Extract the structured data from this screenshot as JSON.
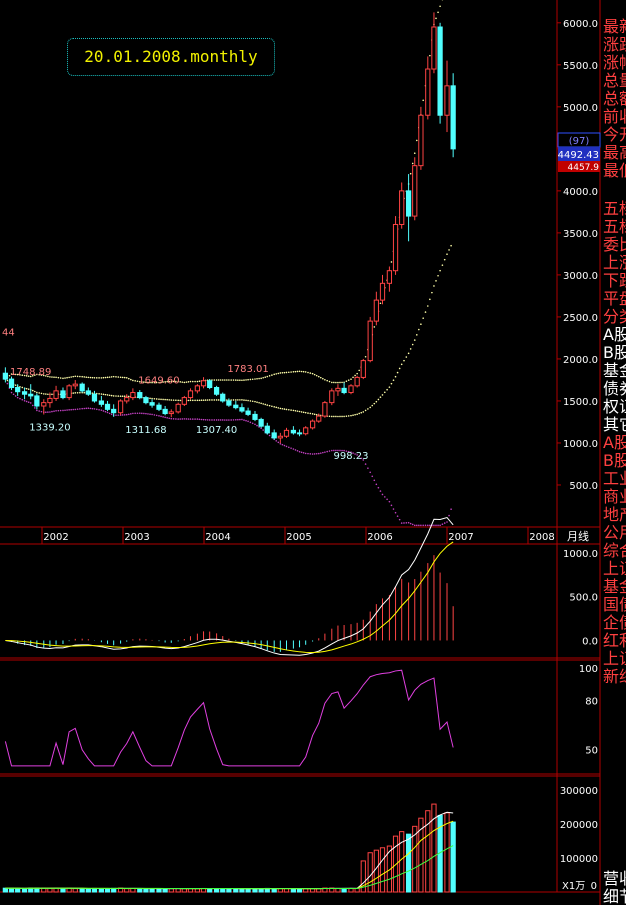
{
  "chart_data": [
    {
      "type": "candlestick",
      "title": "20.01.2008.monthly",
      "period_label": "月线",
      "ylim": [
        0,
        6200
      ],
      "y_ticks": [
        500,
        1000,
        1500,
        2000,
        2500,
        3000,
        3500,
        4000,
        4500,
        5000,
        5500,
        6000
      ],
      "y_tick_labels": [
        "500.0",
        "1000.0",
        "1500.0",
        "2000.0",
        "2500.0",
        "3000.0",
        "3500.0",
        "4000.0",
        "4500.0",
        "5000.0",
        "5500.0",
        "6000.0"
      ],
      "x_year_labels": [
        {
          "label": "2002",
          "x": 2002
        },
        {
          "label": "2003",
          "x": 2003
        },
        {
          "label": "2004",
          "x": 2004
        },
        {
          "label": "2005",
          "x": 2005
        },
        {
          "label": "2006",
          "x": 2006
        },
        {
          "label": "2007",
          "x": 2007
        },
        {
          "label": "2008",
          "x": 2008
        }
      ],
      "annotations": [
        {
          "text": "1748.89",
          "x": 2001.25,
          "y": 1748.89,
          "pos": "above"
        },
        {
          "text": "1339.20",
          "x": 2001.5,
          "y": 1339.2,
          "pos": "below"
        },
        {
          "text": "1649.60",
          "x": 2002.92,
          "y": 1649.6,
          "pos": "above"
        },
        {
          "text": "1311.68",
          "x": 2002.75,
          "y": 1311.68,
          "pos": "below"
        },
        {
          "text": "1783.01",
          "x": 2004.08,
          "y": 1783.01,
          "pos": "above"
        },
        {
          "text": "1307.40",
          "x": 2003.67,
          "y": 1307.4,
          "pos": "below"
        },
        {
          "text": "998.23",
          "x": 2005.42,
          "y": 998.23,
          "pos": "below"
        },
        {
          "text": "44",
          "x": 2000.9,
          "y": 2325,
          "pos": "left"
        }
      ],
      "current_markers": {
        "count_label": "(97)",
        "price_a": "4492.43",
        "price_b": "4457.9"
      },
      "candles": [
        {
          "t": 2000.92,
          "o": 1830,
          "h": 1900,
          "l": 1720,
          "c": 1760
        },
        {
          "t": 2001.0,
          "o": 1760,
          "h": 1790,
          "l": 1630,
          "c": 1660
        },
        {
          "t": 2001.08,
          "o": 1660,
          "h": 1700,
          "l": 1560,
          "c": 1610
        },
        {
          "t": 2001.17,
          "o": 1610,
          "h": 1660,
          "l": 1520,
          "c": 1580
        },
        {
          "t": 2001.25,
          "o": 1580,
          "h": 1700,
          "l": 1520,
          "c": 1560
        },
        {
          "t": 2001.33,
          "o": 1560,
          "h": 1590,
          "l": 1400,
          "c": 1440
        },
        {
          "t": 2001.42,
          "o": 1440,
          "h": 1520,
          "l": 1339,
          "c": 1480
        },
        {
          "t": 2001.5,
          "o": 1480,
          "h": 1600,
          "l": 1420,
          "c": 1530
        },
        {
          "t": 2001.58,
          "o": 1530,
          "h": 1680,
          "l": 1500,
          "c": 1620
        },
        {
          "t": 2001.67,
          "o": 1620,
          "h": 1660,
          "l": 1520,
          "c": 1540
        },
        {
          "t": 2001.75,
          "o": 1540,
          "h": 1700,
          "l": 1510,
          "c": 1680
        },
        {
          "t": 2001.83,
          "o": 1680,
          "h": 1749,
          "l": 1640,
          "c": 1700
        },
        {
          "t": 2001.92,
          "o": 1700,
          "h": 1720,
          "l": 1600,
          "c": 1620
        },
        {
          "t": 2002.0,
          "o": 1620,
          "h": 1660,
          "l": 1560,
          "c": 1580
        },
        {
          "t": 2002.08,
          "o": 1580,
          "h": 1620,
          "l": 1480,
          "c": 1500
        },
        {
          "t": 2002.17,
          "o": 1500,
          "h": 1560,
          "l": 1430,
          "c": 1460
        },
        {
          "t": 2002.25,
          "o": 1460,
          "h": 1500,
          "l": 1380,
          "c": 1400
        },
        {
          "t": 2002.33,
          "o": 1400,
          "h": 1460,
          "l": 1311,
          "c": 1360
        },
        {
          "t": 2002.42,
          "o": 1360,
          "h": 1520,
          "l": 1330,
          "c": 1500
        },
        {
          "t": 2002.5,
          "o": 1500,
          "h": 1580,
          "l": 1470,
          "c": 1540
        },
        {
          "t": 2002.58,
          "o": 1540,
          "h": 1650,
          "l": 1510,
          "c": 1600
        },
        {
          "t": 2002.67,
          "o": 1600,
          "h": 1630,
          "l": 1520,
          "c": 1540
        },
        {
          "t": 2002.75,
          "o": 1540,
          "h": 1560,
          "l": 1460,
          "c": 1480
        },
        {
          "t": 2002.83,
          "o": 1480,
          "h": 1520,
          "l": 1420,
          "c": 1450
        },
        {
          "t": 2002.92,
          "o": 1450,
          "h": 1480,
          "l": 1380,
          "c": 1400
        },
        {
          "t": 2003.0,
          "o": 1400,
          "h": 1440,
          "l": 1330,
          "c": 1350
        },
        {
          "t": 2003.08,
          "o": 1350,
          "h": 1400,
          "l": 1307,
          "c": 1370
        },
        {
          "t": 2003.17,
          "o": 1370,
          "h": 1480,
          "l": 1350,
          "c": 1460
        },
        {
          "t": 2003.25,
          "o": 1460,
          "h": 1560,
          "l": 1440,
          "c": 1540
        },
        {
          "t": 2003.33,
          "o": 1540,
          "h": 1650,
          "l": 1520,
          "c": 1620
        },
        {
          "t": 2003.42,
          "o": 1620,
          "h": 1700,
          "l": 1590,
          "c": 1680
        },
        {
          "t": 2003.5,
          "o": 1680,
          "h": 1783,
          "l": 1650,
          "c": 1740
        },
        {
          "t": 2003.58,
          "o": 1740,
          "h": 1760,
          "l": 1640,
          "c": 1660
        },
        {
          "t": 2003.67,
          "o": 1660,
          "h": 1680,
          "l": 1560,
          "c": 1580
        },
        {
          "t": 2003.75,
          "o": 1580,
          "h": 1600,
          "l": 1480,
          "c": 1500
        },
        {
          "t": 2003.83,
          "o": 1500,
          "h": 1530,
          "l": 1430,
          "c": 1450
        },
        {
          "t": 2003.92,
          "o": 1450,
          "h": 1500,
          "l": 1400,
          "c": 1420
        },
        {
          "t": 2004.0,
          "o": 1420,
          "h": 1470,
          "l": 1360,
          "c": 1380
        },
        {
          "t": 2004.08,
          "o": 1380,
          "h": 1420,
          "l": 1320,
          "c": 1340
        },
        {
          "t": 2004.17,
          "o": 1340,
          "h": 1380,
          "l": 1260,
          "c": 1280
        },
        {
          "t": 2004.25,
          "o": 1280,
          "h": 1300,
          "l": 1180,
          "c": 1200
        },
        {
          "t": 2004.33,
          "o": 1200,
          "h": 1240,
          "l": 1100,
          "c": 1120
        },
        {
          "t": 2004.42,
          "o": 1120,
          "h": 1160,
          "l": 1040,
          "c": 1060
        },
        {
          "t": 2004.5,
          "o": 1060,
          "h": 1120,
          "l": 998,
          "c": 1080
        },
        {
          "t": 2004.58,
          "o": 1080,
          "h": 1180,
          "l": 1060,
          "c": 1150
        },
        {
          "t": 2004.67,
          "o": 1150,
          "h": 1200,
          "l": 1100,
          "c": 1120
        },
        {
          "t": 2004.75,
          "o": 1120,
          "h": 1160,
          "l": 1080,
          "c": 1110
        },
        {
          "t": 2004.83,
          "o": 1110,
          "h": 1200,
          "l": 1090,
          "c": 1180
        },
        {
          "t": 2004.92,
          "o": 1180,
          "h": 1280,
          "l": 1160,
          "c": 1260
        },
        {
          "t": 2005.0,
          "o": 1260,
          "h": 1350,
          "l": 1240,
          "c": 1320
        },
        {
          "t": 2005.08,
          "o": 1320,
          "h": 1500,
          "l": 1300,
          "c": 1480
        },
        {
          "t": 2005.17,
          "o": 1480,
          "h": 1650,
          "l": 1450,
          "c": 1620
        },
        {
          "t": 2005.25,
          "o": 1620,
          "h": 1700,
          "l": 1560,
          "c": 1650
        },
        {
          "t": 2005.33,
          "o": 1650,
          "h": 1720,
          "l": 1580,
          "c": 1600
        },
        {
          "t": 2005.42,
          "o": 1600,
          "h": 1700,
          "l": 1580,
          "c": 1680
        },
        {
          "t": 2005.5,
          "o": 1680,
          "h": 1800,
          "l": 1660,
          "c": 1780
        },
        {
          "t": 2005.58,
          "o": 1780,
          "h": 2000,
          "l": 1760,
          "c": 1980
        },
        {
          "t": 2005.67,
          "o": 1980,
          "h": 2500,
          "l": 1960,
          "c": 2450
        },
        {
          "t": 2005.75,
          "o": 2450,
          "h": 2800,
          "l": 2400,
          "c": 2700
        },
        {
          "t": 2005.83,
          "o": 2700,
          "h": 3000,
          "l": 2650,
          "c": 2900
        },
        {
          "t": 2005.92,
          "o": 2900,
          "h": 3100,
          "l": 2800,
          "c": 3050
        },
        {
          "t": 2006.0,
          "o": 3050,
          "h": 3700,
          "l": 3000,
          "c": 3600
        },
        {
          "t": 2006.08,
          "o": 3600,
          "h": 4100,
          "l": 3550,
          "c": 4000
        },
        {
          "t": 2006.17,
          "o": 4000,
          "h": 4200,
          "l": 3400,
          "c": 3700
        },
        {
          "t": 2006.25,
          "o": 3700,
          "h": 4400,
          "l": 3650,
          "c": 4300
        },
        {
          "t": 2006.33,
          "o": 4300,
          "h": 5000,
          "l": 4250,
          "c": 4900
        },
        {
          "t": 2006.42,
          "o": 4900,
          "h": 5600,
          "l": 4850,
          "c": 5450
        },
        {
          "t": 2006.5,
          "o": 5450,
          "h": 6124,
          "l": 5400,
          "c": 5950
        },
        {
          "t": 2006.58,
          "o": 5950,
          "h": 6000,
          "l": 4800,
          "c": 4900
        },
        {
          "t": 2006.67,
          "o": 4900,
          "h": 5550,
          "l": 4700,
          "c": 5250
        },
        {
          "t": 2006.75,
          "o": 5250,
          "h": 5400,
          "l": 4400,
          "c": 4500
        }
      ],
      "overlay_color_up": "#ff4444",
      "overlay_color_down": "#50ffff"
    },
    {
      "type": "line",
      "name": "MACD panel",
      "y_ticks": [
        0,
        500,
        1000
      ],
      "y_tick_labels": [
        "0.0",
        "500.0",
        "1000.0"
      ],
      "ylim": [
        -200,
        1100
      ]
    },
    {
      "type": "line",
      "name": "RSI panel",
      "y_ticks": [
        50,
        80,
        100
      ],
      "y_tick_labels": [
        "50",
        "80",
        "100"
      ],
      "ylim": [
        35,
        105
      ]
    },
    {
      "type": "bar",
      "name": "Volume panel",
      "y_ticks": [
        100000,
        200000,
        300000
      ],
      "y_tick_labels": [
        "100000",
        "200000",
        "300000"
      ],
      "ylim": [
        0,
        330000
      ],
      "unit_label": "X1万",
      "zero_label": "0"
    }
  ],
  "side_panel": {
    "items": [
      {
        "text": "最新",
        "color": "#ff4040"
      },
      {
        "text": "涨跌",
        "color": "#ff4040"
      },
      {
        "text": "涨幅",
        "color": "#ff4040"
      },
      {
        "text": "总量",
        "color": "#ff4040"
      },
      {
        "text": "总额",
        "color": "#ff4040"
      },
      {
        "text": "前收",
        "color": "#ff4040"
      },
      {
        "text": "今开",
        "color": "#ff4040"
      },
      {
        "text": "最高",
        "color": "#ff4040"
      },
      {
        "text": "最低",
        "color": "#ff4040"
      },
      {
        "text": "五档",
        "color": "#ff4040"
      },
      {
        "text": "五档",
        "color": "#ff4040"
      },
      {
        "text": "委比",
        "color": "#ff4040"
      },
      {
        "text": "上涨",
        "color": "#ff4040"
      },
      {
        "text": "下跌",
        "color": "#ff4040"
      },
      {
        "text": "平盘",
        "color": "#ff4040"
      },
      {
        "text": "分类",
        "color": "#ff4040"
      },
      {
        "text": "A股",
        "color": "#ffffff"
      },
      {
        "text": "B股",
        "color": "#ffffff"
      },
      {
        "text": "基金",
        "color": "#ffffff"
      },
      {
        "text": "债券",
        "color": "#ffffff"
      },
      {
        "text": "权证",
        "color": "#ffffff"
      },
      {
        "text": "其它",
        "color": "#ffffff"
      },
      {
        "text": "A股",
        "color": "#ff4040"
      },
      {
        "text": "B股",
        "color": "#ff4040"
      },
      {
        "text": "工业",
        "color": "#ff4040"
      },
      {
        "text": "商业",
        "color": "#ff4040"
      },
      {
        "text": "地产",
        "color": "#ff4040"
      },
      {
        "text": "公用",
        "color": "#ff4040"
      },
      {
        "text": "综合",
        "color": "#ff4040"
      },
      {
        "text": "上证",
        "color": "#ff4040"
      },
      {
        "text": "基金",
        "color": "#ff4040"
      },
      {
        "text": "国债",
        "color": "#ff4040"
      },
      {
        "text": "企债",
        "color": "#ff4040"
      },
      {
        "text": "红利",
        "color": "#ff4040"
      },
      {
        "text": "上证",
        "color": "#ff4040"
      },
      {
        "text": "新综",
        "color": "#ff4040"
      },
      {
        "text": "营收",
        "color": "#ffffff"
      },
      {
        "text": "细节",
        "color": "#ffffff"
      }
    ],
    "top_icon": "grid-icon"
  }
}
